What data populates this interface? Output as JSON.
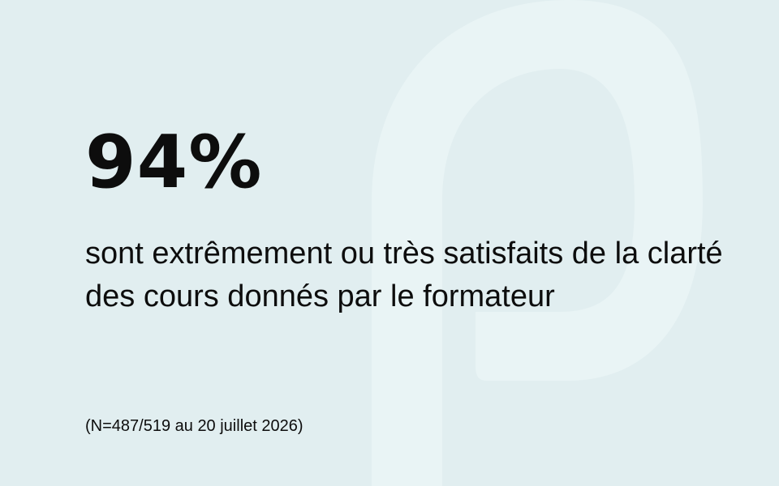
{
  "theme": {
    "background": "#e1eef0",
    "watermark": "#e9f4f5",
    "text": "#0d0d0d"
  },
  "logo": {
    "icon": "p-logo-watermark-icon"
  },
  "statistic": {
    "value": "94%",
    "description": "sont extrêmement ou très satisfaits de la clarté des cours donnés par le formateur"
  },
  "footnote": {
    "text": "(N=487/519 au 20 juillet 2026)"
  }
}
